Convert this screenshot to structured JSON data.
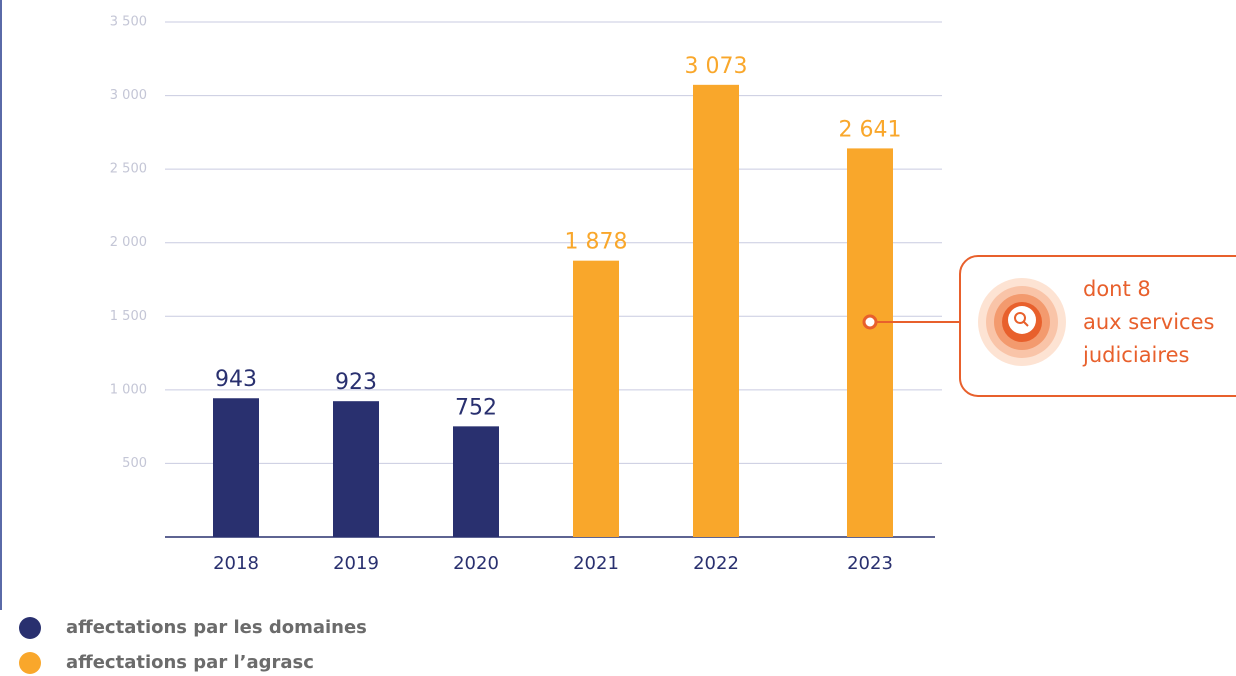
{
  "chart_data": {
    "type": "bar",
    "categories": [
      "2018",
      "2019",
      "2020",
      "2021",
      "2022",
      "2023"
    ],
    "series": [
      {
        "name": "affectations par les domaines",
        "color": "#29306f",
        "values": [
          943,
          923,
          752,
          null,
          null,
          null
        ]
      },
      {
        "name": "affectations par l’agrasc",
        "color": "#f9a72b",
        "values": [
          null,
          null,
          null,
          1878,
          3073,
          2641
        ],
        "value_labels": [
          null,
          null,
          null,
          "1 878",
          "3 073",
          "2 641"
        ]
      }
    ],
    "ylim": [
      0,
      3500
    ],
    "yticks": [
      500,
      {
        "value": 1000,
        "label": "1 000"
      },
      {
        "value": 1500,
        "label": "1 500"
      },
      {
        "value": 2000,
        "label": "2 000"
      },
      {
        "value": 2500,
        "label": "2 500"
      },
      {
        "value": 3000,
        "label": "3 000"
      },
      {
        "value": 3500,
        "label": "3 500"
      }
    ],
    "grid": true,
    "annotation": {
      "category": "2023",
      "lines": [
        "dont 8",
        "aux services",
        "judiciaires"
      ],
      "color": "#e8602c"
    }
  }
}
